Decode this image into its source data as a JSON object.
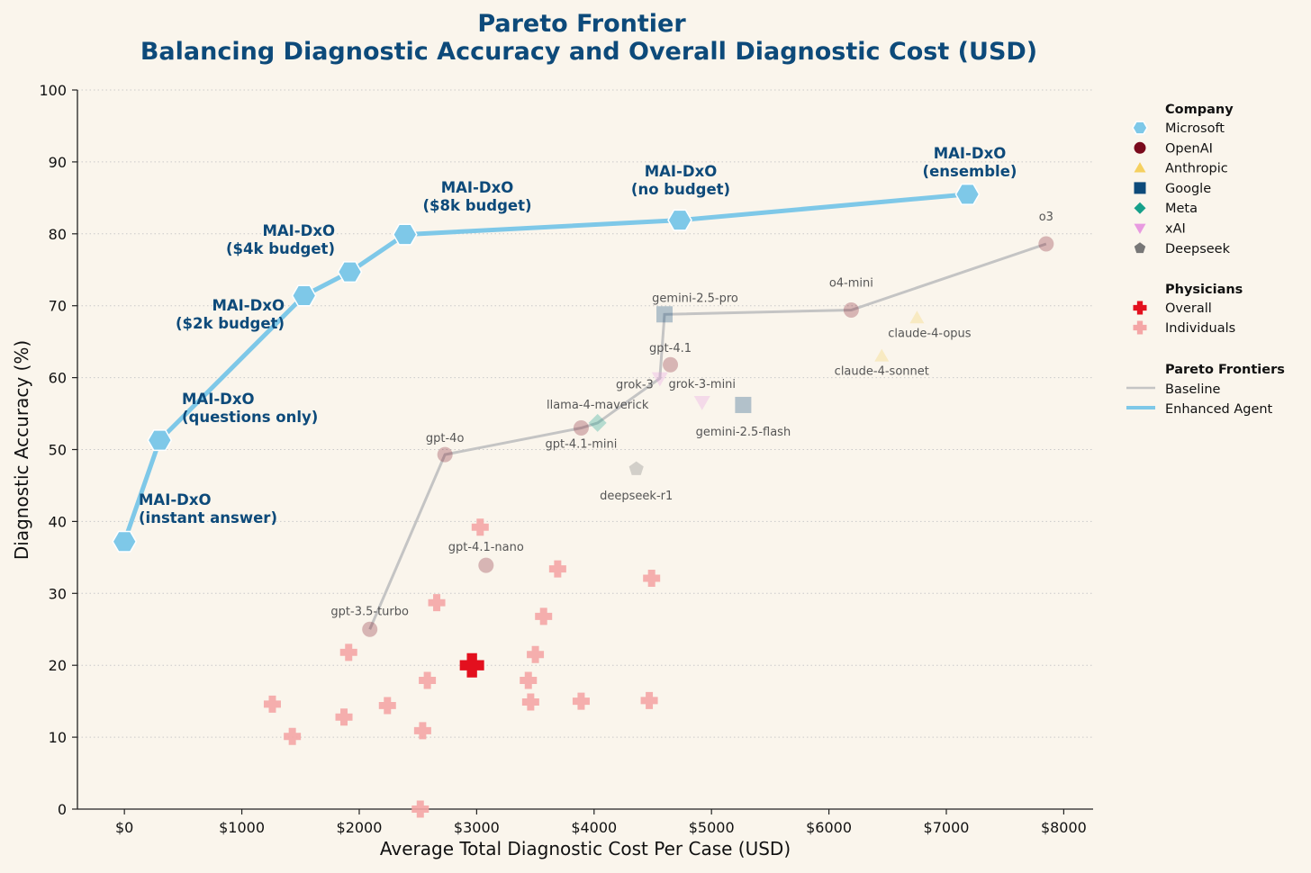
{
  "chart_data": {
    "type": "scatter",
    "title": "Pareto Frontier",
    "subtitle": "Balancing Diagnostic Accuracy and Overall Diagnostic Cost (USD)",
    "xlabel": "Average Total Diagnostic Cost Per Case (USD)",
    "ylabel": "Diagnostic Accuracy (%)",
    "xlim": [
      -400,
      8250
    ],
    "ylim": [
      0,
      100
    ],
    "x_ticks": [
      "$0",
      "$1000",
      "$2000",
      "$3000",
      "$4000",
      "$5000",
      "$6000",
      "$7000",
      "$8000"
    ],
    "x_tick_values": [
      0,
      1000,
      2000,
      3000,
      4000,
      5000,
      6000,
      7000,
      8000
    ],
    "y_ticks": [
      "0",
      "10",
      "20",
      "30",
      "40",
      "50",
      "60",
      "70",
      "80",
      "90",
      "100"
    ],
    "y_tick_values": [
      0,
      10,
      20,
      30,
      40,
      50,
      60,
      70,
      80,
      90,
      100
    ],
    "grid": "horizontal dotted",
    "legend_placement": "right",
    "colors": {
      "Microsoft": "#7ec8e8",
      "OpenAI": "#7a0a1c",
      "Anthropic": "#f5d060",
      "Google": "#0d4a7a",
      "Meta": "#16a08a",
      "xAI": "#e89ae0",
      "Deepseek": "#777777",
      "physician_overall": "#e3101e",
      "physician_individual": "#f4a6a6",
      "baseline_line": "#c4c4c4",
      "enhanced_line": "#7ec8e8"
    },
    "enhanced_agent": [
      {
        "x": 0,
        "y": 37.2,
        "label": [
          "MAI-DxO",
          "(instant answer)"
        ]
      },
      {
        "x": 300,
        "y": 51.3,
        "label": [
          "MAI-DxO",
          "(questions only)"
        ]
      },
      {
        "x": 1530,
        "y": 71.4,
        "label": [
          "MAI-DxO",
          "($2k budget)"
        ]
      },
      {
        "x": 1920,
        "y": 74.7,
        "label": []
      },
      {
        "x": 2390,
        "y": 79.9,
        "label": [
          "MAI-DxO",
          "($4k budget)"
        ]
      },
      {
        "x": 4730,
        "y": 81.9,
        "label": [
          "MAI-DxO",
          "($8k budget)"
        ]
      },
      {
        "x": 7180,
        "y": 85.5,
        "label": [
          "MAI-DxO",
          "(no budget)"
        ]
      }
    ],
    "enhanced_extra_labels": [
      [
        "MAI-DxO",
        "(ensemble)"
      ]
    ],
    "models": [
      {
        "name": "gpt-3.5-turbo",
        "company": "OpenAI",
        "x": 2090,
        "y": 25.0
      },
      {
        "name": "gpt-4o",
        "company": "OpenAI",
        "x": 2730,
        "y": 49.3
      },
      {
        "name": "gpt-4.1-nano",
        "company": "OpenAI",
        "x": 3080,
        "y": 33.9
      },
      {
        "name": "gpt-4.1-mini",
        "company": "OpenAI",
        "x": 3890,
        "y": 53.0
      },
      {
        "name": "llama-4-maverick",
        "company": "Meta",
        "x": 4030,
        "y": 53.7
      },
      {
        "name": "deepseek-r1",
        "company": "Deepseek",
        "x": 4360,
        "y": 47.3
      },
      {
        "name": "grok-3",
        "company": "xAI",
        "x": 4560,
        "y": 59.9
      },
      {
        "name": "gemini-2.5-pro",
        "company": "Google",
        "x": 4600,
        "y": 68.8
      },
      {
        "name": "gpt-4.1",
        "company": "OpenAI",
        "x": 4650,
        "y": 61.8
      },
      {
        "name": "grok-3-mini",
        "company": "xAI",
        "x": 4920,
        "y": 56.6
      },
      {
        "name": "gemini-2.5-flash",
        "company": "Google",
        "x": 5270,
        "y": 56.2
      },
      {
        "name": "o4-mini",
        "company": "OpenAI",
        "x": 6190,
        "y": 69.4
      },
      {
        "name": "claude-4-sonnet",
        "company": "Anthropic",
        "x": 6450,
        "y": 63.0
      },
      {
        "name": "claude-4-opus",
        "company": "Anthropic",
        "x": 6750,
        "y": 68.3
      },
      {
        "name": "o3",
        "company": "OpenAI",
        "x": 7850,
        "y": 78.6
      }
    ],
    "baseline_frontier": [
      "gpt-3.5-turbo",
      "gpt-4o",
      "gpt-4.1-mini",
      "llama-4-maverick",
      "grok-3",
      "gemini-2.5-pro",
      "o4-mini",
      "o3"
    ],
    "physicians_overall": {
      "x": 2960,
      "y": 20.0
    },
    "physicians_individuals": [
      {
        "x": 1260,
        "y": 14.6
      },
      {
        "x": 1430,
        "y": 10.1
      },
      {
        "x": 1870,
        "y": 12.8
      },
      {
        "x": 1910,
        "y": 21.8
      },
      {
        "x": 2240,
        "y": 14.4
      },
      {
        "x": 2540,
        "y": 10.9
      },
      {
        "x": 2580,
        "y": 17.9
      },
      {
        "x": 2660,
        "y": 28.7
      },
      {
        "x": 2520,
        "y": 0.0
      },
      {
        "x": 3030,
        "y": 39.2
      },
      {
        "x": 3460,
        "y": 14.9
      },
      {
        "x": 3440,
        "y": 17.9
      },
      {
        "x": 3500,
        "y": 21.5
      },
      {
        "x": 3570,
        "y": 26.8
      },
      {
        "x": 3690,
        "y": 33.4
      },
      {
        "x": 3890,
        "y": 15.0
      },
      {
        "x": 4470,
        "y": 15.1
      },
      {
        "x": 4490,
        "y": 32.1
      }
    ]
  },
  "legend": {
    "company_title": "Company",
    "companies": [
      "Microsoft",
      "OpenAI",
      "Anthropic",
      "Google",
      "Meta",
      "xAI",
      "Deepseek"
    ],
    "physicians_title": "Physicians",
    "physicians": [
      "Overall",
      "Individuals"
    ],
    "frontiers_title": "Pareto Frontiers",
    "frontiers": [
      "Baseline",
      "Enhanced Agent"
    ]
  }
}
